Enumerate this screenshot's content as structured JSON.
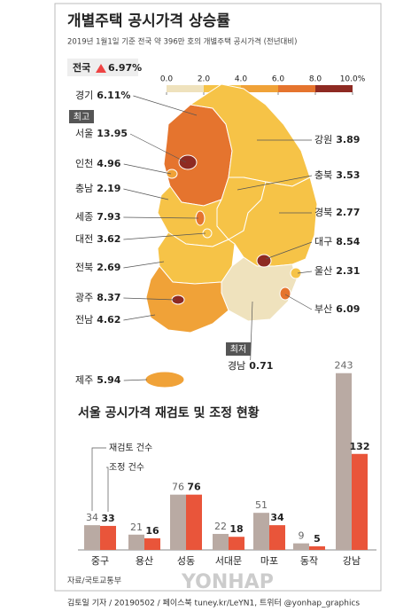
{
  "header": {
    "title": "개별주택 공시가격 상승률",
    "subtitle": "2019년 1월1일 기준 전국 약 396만 호의 개별주택 공시가격 (전년대비)"
  },
  "map": {
    "national": {
      "name": "전국",
      "value": 6.97,
      "value_label": "6.97%"
    },
    "legend": {
      "ticks": [
        {
          "value": 0,
          "label": "0.0"
        },
        {
          "value": 2,
          "label": "2.0"
        },
        {
          "value": 4,
          "label": "4.0"
        },
        {
          "value": 6,
          "label": "6.0"
        },
        {
          "value": 8,
          "label": "8.0"
        },
        {
          "value": 10,
          "label": "10.0%"
        }
      ],
      "colors": [
        "#efe2bd",
        "#f6c347",
        "#f0a238",
        "#e5742e",
        "#8e2a22"
      ]
    },
    "badges": {
      "highest": "최고",
      "lowest": "최저"
    },
    "regions": [
      {
        "name": "경기",
        "value": 6.11,
        "value_label": "6.11%"
      },
      {
        "name": "서울",
        "value": 13.95
      },
      {
        "name": "인천",
        "value": 4.96
      },
      {
        "name": "충남",
        "value": 2.19
      },
      {
        "name": "세종",
        "value": 7.93
      },
      {
        "name": "대전",
        "value": 3.62
      },
      {
        "name": "전북",
        "value": 2.69
      },
      {
        "name": "광주",
        "value": 8.37
      },
      {
        "name": "전남",
        "value": 4.62
      },
      {
        "name": "제주",
        "value": 5.94
      },
      {
        "name": "강원",
        "value": 3.89
      },
      {
        "name": "충북",
        "value": 3.53
      },
      {
        "name": "경북",
        "value": 2.77
      },
      {
        "name": "대구",
        "value": 8.54
      },
      {
        "name": "울산",
        "value": 2.31
      },
      {
        "name": "부산",
        "value": 6.09
      },
      {
        "name": "경남",
        "value": 0.71
      }
    ]
  },
  "chart_data": {
    "type": "bar",
    "title": "서울 공시가격 재검토 및 조정 현황",
    "categories": [
      "중구",
      "용산",
      "성동",
      "서대문",
      "마포",
      "동작",
      "강남"
    ],
    "series": [
      {
        "name": "재검토 건수",
        "color": "#b9aaa3",
        "values": [
          34,
          21,
          76,
          22,
          51,
          9,
          243
        ]
      },
      {
        "name": "조정 건수",
        "color": "#e9553a",
        "values": [
          33,
          16,
          76,
          18,
          34,
          5,
          132
        ]
      }
    ],
    "ylim": [
      0,
      250
    ]
  },
  "footer": {
    "source": "자료/국토교통부",
    "credit": "김토일 기자 / 20190502 / 페이스북 tuney.kr/LeYN1, 트위터 @yonhap_graphics",
    "watermark": "YONHAP"
  }
}
